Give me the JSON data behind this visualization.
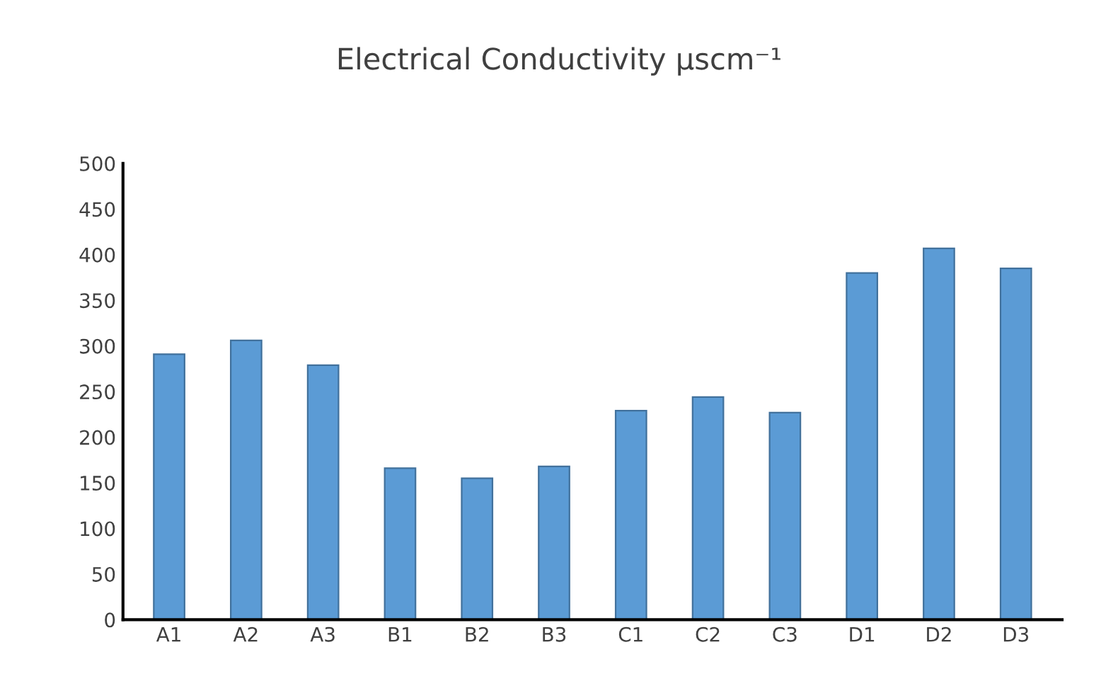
{
  "chart_data": {
    "type": "bar",
    "title": "Electrical Conductivity μscm⁻¹",
    "categories": [
      "A1",
      "A2",
      "A3",
      "B1",
      "B2",
      "B3",
      "C1",
      "C2",
      "C3",
      "D1",
      "D2",
      "D3"
    ],
    "values": [
      291,
      306,
      279,
      166,
      155,
      168,
      229,
      244,
      227,
      380,
      407,
      385
    ],
    "color": "#5b9bd5",
    "ylim": [
      0,
      500
    ],
    "yticks": [
      0,
      50,
      100,
      150,
      200,
      250,
      300,
      350,
      400,
      450,
      500
    ],
    "grid": false
  }
}
